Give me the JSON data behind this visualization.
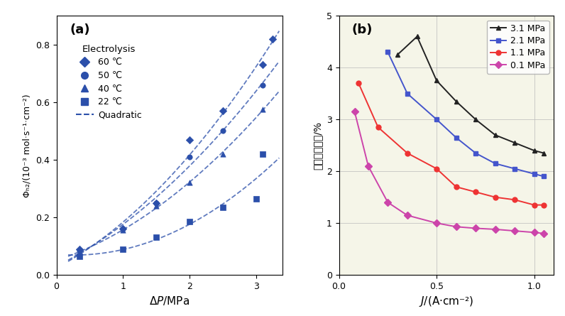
{
  "panel_a": {
    "label": "(a)",
    "xlim": [
      0,
      3.4
    ],
    "ylim": [
      0,
      0.9
    ],
    "xticks": [
      0,
      1,
      2,
      3
    ],
    "yticks": [
      0.0,
      0.2,
      0.4,
      0.6,
      0.8
    ],
    "series": [
      {
        "label": "60 ℃",
        "marker": "D",
        "color": "#2b4faa",
        "x": [
          0.35,
          1.0,
          1.5,
          2.0,
          2.5,
          3.1,
          3.25
        ],
        "y": [
          0.09,
          0.16,
          0.25,
          0.47,
          0.57,
          0.73,
          0.82
        ]
      },
      {
        "label": "50 ℃",
        "marker": "o",
        "color": "#2b4faa",
        "x": [
          0.35,
          1.0,
          1.5,
          2.0,
          2.5,
          3.1
        ],
        "y": [
          0.085,
          0.16,
          0.25,
          0.41,
          0.5,
          0.66
        ]
      },
      {
        "label": "40 ℃",
        "marker": "^",
        "color": "#2b4faa",
        "x": [
          0.35,
          1.0,
          1.5,
          2.0,
          2.5,
          3.1
        ],
        "y": [
          0.08,
          0.155,
          0.24,
          0.32,
          0.42,
          0.575
        ]
      },
      {
        "label": "22 ℃",
        "marker": "s",
        "color": "#2b4faa",
        "x": [
          0.35,
          1.0,
          1.5,
          2.0,
          2.5,
          3.0,
          3.1
        ],
        "y": [
          0.065,
          0.09,
          0.13,
          0.185,
          0.235,
          0.265,
          0.42
        ]
      }
    ],
    "quad_label": "Quadratic"
  },
  "panel_b": {
    "label": "(b)",
    "xlim": [
      0.0,
      1.1
    ],
    "ylim": [
      0,
      5
    ],
    "xticks": [
      0.0,
      0.5,
      1.0
    ],
    "yticks": [
      0,
      1,
      2,
      3,
      4,
      5
    ],
    "bg_color": "#f5f5e8",
    "series": [
      {
        "label": "3.1 MPa",
        "marker": "^",
        "color": "#222222",
        "x": [
          0.3,
          0.4,
          0.5,
          0.6,
          0.7,
          0.8,
          0.9,
          1.0,
          1.05
        ],
        "y": [
          4.25,
          4.6,
          3.75,
          3.35,
          3.0,
          2.7,
          2.55,
          2.4,
          2.35
        ]
      },
      {
        "label": "2.1 MPa",
        "marker": "s",
        "color": "#4455cc",
        "x": [
          0.25,
          0.35,
          0.5,
          0.6,
          0.7,
          0.8,
          0.9,
          1.0,
          1.05
        ],
        "y": [
          4.3,
          3.5,
          3.0,
          2.65,
          2.35,
          2.15,
          2.05,
          1.95,
          1.9
        ]
      },
      {
        "label": "1.1 MPa",
        "marker": "o",
        "color": "#ee3333",
        "x": [
          0.1,
          0.2,
          0.35,
          0.5,
          0.6,
          0.7,
          0.8,
          0.9,
          1.0,
          1.05
        ],
        "y": [
          3.7,
          2.85,
          2.35,
          2.05,
          1.7,
          1.6,
          1.5,
          1.45,
          1.35,
          1.35
        ]
      },
      {
        "label": "0.1 MPa",
        "marker": "D",
        "color": "#cc44aa",
        "x": [
          0.08,
          0.15,
          0.25,
          0.35,
          0.5,
          0.6,
          0.7,
          0.8,
          0.9,
          1.0,
          1.05
        ],
        "y": [
          3.15,
          2.1,
          1.4,
          1.15,
          1.0,
          0.93,
          0.9,
          0.88,
          0.85,
          0.82,
          0.8
        ]
      }
    ]
  }
}
